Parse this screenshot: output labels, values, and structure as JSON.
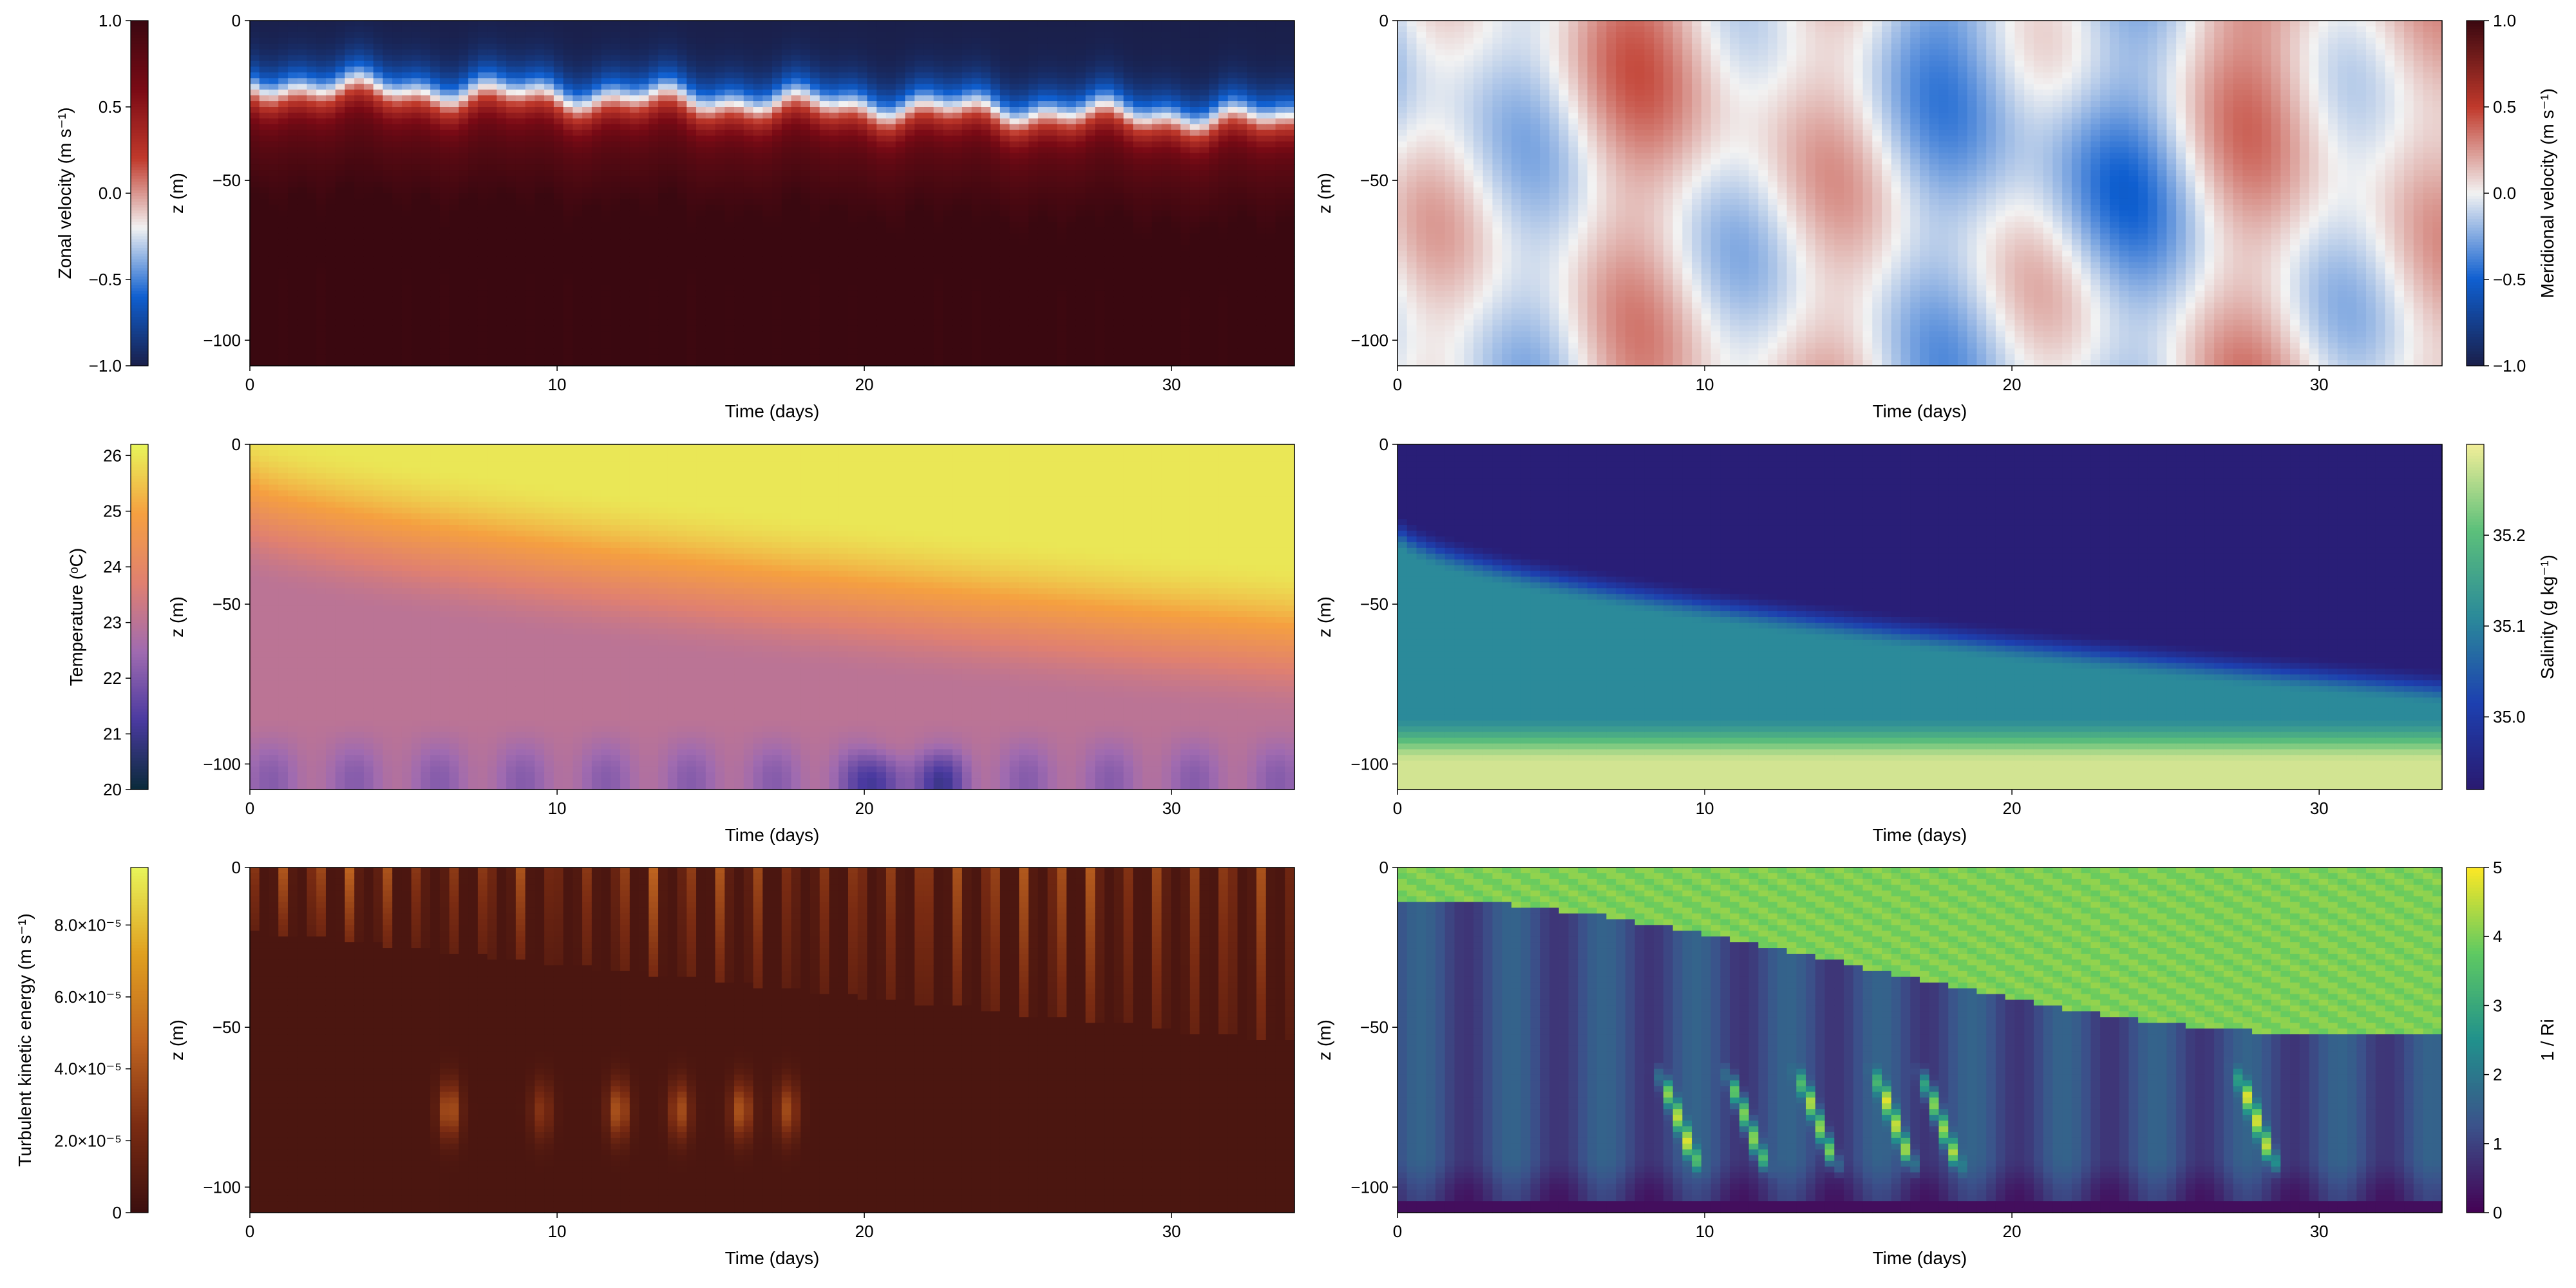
{
  "chart_data": [
    {
      "type": "heatmap",
      "panel": "top-left",
      "xlabel": "Time (days)",
      "ylabel": "z (m)",
      "xlim": [
        0,
        34
      ],
      "ylim": [
        -108,
        0
      ],
      "xticks": [
        "0",
        "10",
        "20",
        "30"
      ],
      "yticks": [
        "0",
        "−50",
        "−100"
      ],
      "colorbar": {
        "label": "Zonal velocity (m s⁻¹)",
        "ticks": [
          "1.0",
          "0.5",
          "0.0",
          "−0.5",
          "−1.0"
        ],
        "range": [
          -1.0,
          1.0
        ],
        "colormap": [
          "#1a1f4a",
          "#0f5fd0",
          "#f2f2f2",
          "#c0392b",
          "#7a0a15",
          "#3a0810"
        ],
        "side": "left"
      },
      "field_summary": "Negative velocity (blue) in the upper ~30 m, deepening from ~-20 m to ~-35 m; positive velocity (red) below."
    },
    {
      "type": "heatmap",
      "panel": "top-right",
      "xlabel": "Time (days)",
      "ylabel": "z (m)",
      "xlim": [
        0,
        34
      ],
      "ylim": [
        -108,
        0
      ],
      "xticks": [
        "0",
        "10",
        "20",
        "30"
      ],
      "yticks": [
        "0",
        "−50",
        "−100"
      ],
      "colorbar": {
        "label": "Meridional velocity (m s⁻¹)",
        "ticks": [
          "1.0",
          "0.5",
          "0.0",
          "−0.5",
          "−1.0"
        ],
        "range": [
          -1.0,
          1.0
        ],
        "colormap": [
          "#1a1f4a",
          "#0f5fd0",
          "#f2f2f2",
          "#c0392b",
          "#3a0810"
        ],
        "side": "right"
      },
      "field_summary": "Weak velocities near zero; alternating pale blue and pale red vertical bands; strongest blue around day 20-25."
    },
    {
      "type": "heatmap",
      "panel": "middle-left",
      "xlabel": "Time (days)",
      "ylabel": "z (m)",
      "xlim": [
        0,
        34
      ],
      "ylim": [
        -108,
        0
      ],
      "xticks": [
        "0",
        "10",
        "20",
        "30"
      ],
      "yticks": [
        "0",
        "−50",
        "−100"
      ],
      "colorbar": {
        "label": "Temperature (ᵒC)",
        "ticks": [
          "26",
          "25",
          "24",
          "23",
          "22",
          "21",
          "20"
        ],
        "range": [
          20,
          26.2
        ],
        "colormap": [
          "#0a2a3a",
          "#4a3aa0",
          "#a06bb0",
          "#e08070",
          "#f5a040",
          "#e8f55a"
        ],
        "side": "left"
      },
      "field_summary": "Warm (~26 °C) surface layer deepening from ~0 m to ~-50 m; cooler water (~21-23 °C) below."
    },
    {
      "type": "heatmap",
      "panel": "middle-right",
      "xlabel": "Time (days)",
      "ylabel": "z (m)",
      "xlim": [
        0,
        34
      ],
      "ylim": [
        -108,
        0
      ],
      "xticks": [
        "0",
        "10",
        "20",
        "30"
      ],
      "yticks": [
        "0",
        "−50",
        "−100"
      ],
      "colorbar": {
        "label": "Salinity (g kg⁻¹)",
        "ticks": [
          "35.2",
          "35.1",
          "35.0"
        ],
        "range": [
          34.92,
          35.3
        ],
        "colormap": [
          "#2a1a70",
          "#1d40b0",
          "#2b8a9a",
          "#5cc07a",
          "#f2ee98"
        ],
        "side": "right"
      },
      "field_summary": "Fresh surface layer (~34.93) deepening from ~-20 m to ~-75 m; salty (~35.29) water near bottom."
    },
    {
      "type": "heatmap",
      "panel": "bottom-left",
      "xlabel": "Time (days)",
      "ylabel": "z (m)",
      "xlim": [
        0,
        34
      ],
      "ylim": [
        -108,
        0
      ],
      "xticks": [
        "0",
        "10",
        "20",
        "30"
      ],
      "yticks": [
        "0",
        "−50",
        "−100"
      ],
      "colorbar": {
        "label": "Turbulent kinetic energy (m s⁻¹)",
        "ticks": [
          "8.0×10⁻⁵",
          "6.0×10⁻⁵",
          "4.0×10⁻⁵",
          "2.0×10⁻⁵",
          "0"
        ],
        "range": [
          0,
          9.6e-05
        ],
        "colormap": [
          "#3b0f0f",
          "#7a2b12",
          "#c06520",
          "#e0a020",
          "#e8f55a"
        ],
        "side": "left"
      },
      "field_summary": "Mostly low TKE; bursts of elevated TKE in the upper mixed layer and isolated lenses at ~-75 m between days 6-18."
    },
    {
      "type": "heatmap",
      "panel": "bottom-right",
      "xlabel": "Time (days)",
      "ylabel": "z (m)",
      "xlim": [
        0,
        34
      ],
      "ylim": [
        -108,
        0
      ],
      "xticks": [
        "0",
        "10",
        "20",
        "30"
      ],
      "yticks": [
        "0",
        "−50",
        "−100"
      ],
      "colorbar": {
        "label": "1 / Ri",
        "ticks": [
          "5",
          "4",
          "3",
          "2",
          "1",
          "0"
        ],
        "range": [
          0,
          5
        ],
        "colormap": [
          "#440154",
          "#3b528b",
          "#21918c",
          "#5ec962",
          "#fde725"
        ],
        "side": "right"
      },
      "field_summary": "Upper layer ~4 (green) above ~-55 m; lower layer ~0.5-1.5 (blue/purple) with bright streaks near days 9-18 and 28."
    }
  ]
}
